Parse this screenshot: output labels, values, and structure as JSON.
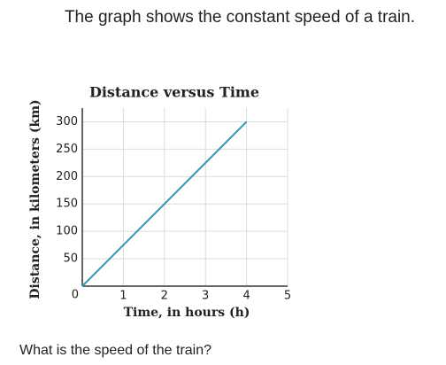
{
  "question": "The graph shows the constant speed of a train.",
  "prompt": "What is the speed of the train?",
  "chart_data": {
    "type": "line",
    "title": "Distance versus Time",
    "x_label": "Time, in hours (h)",
    "y_label": "Distance, in kilometers (km)",
    "x": [
      0,
      4
    ],
    "values": [
      0,
      300
    ],
    "color": "#2b9ab3",
    "xlim": [
      0,
      5
    ],
    "ylim": [
      0,
      325
    ],
    "xticks": [
      1,
      2,
      3,
      4,
      5
    ],
    "yticks": [
      0,
      50,
      100,
      150,
      200,
      250,
      300
    ],
    "grid": true
  }
}
